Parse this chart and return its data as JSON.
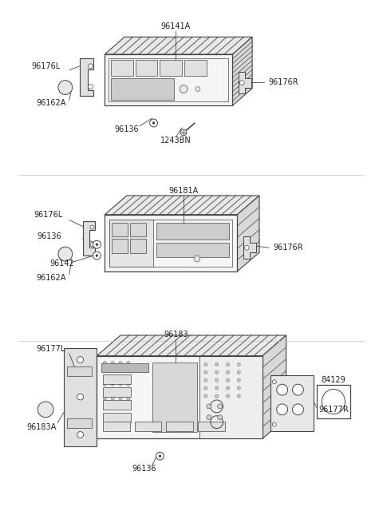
{
  "bg_color": "#ffffff",
  "line_color": "#444444",
  "text_color": "#222222",
  "font_size": 7.0,
  "unit1": {
    "label": "96141A",
    "bracket_L_label": "96176L",
    "bracket_R_label": "96176R",
    "knob_label": "96162A",
    "screw_label": "96136",
    "bolt_label": "1243BN"
  },
  "unit2": {
    "label": "96181A",
    "bracket_L_label": "96176L",
    "bracket_R_label": "96176R",
    "knob_label": "96162A",
    "screw_label": "96136",
    "cd_label": "96142"
  },
  "unit3": {
    "label": "96183",
    "bracket_L_label": "96177L",
    "bracket_R_label": "96177R",
    "knob_label": "96183A",
    "screw_label": "96136",
    "speaker_label": "84129"
  }
}
